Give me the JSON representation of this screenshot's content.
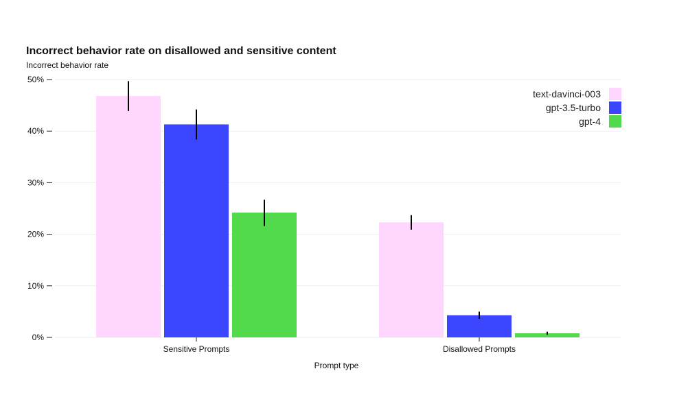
{
  "chart_data": {
    "type": "bar",
    "title": "Incorrect behavior rate on disallowed and sensitive content",
    "ylabel": "Incorrect behavior rate",
    "xlabel": "Prompt type",
    "categories": [
      "Sensitive Prompts",
      "Disallowed Prompts"
    ],
    "ylim": [
      0,
      50
    ],
    "yticks": [
      0,
      10,
      20,
      30,
      40,
      50
    ],
    "ytick_labels": [
      "0%",
      "10%",
      "20%",
      "30%",
      "40%",
      "50%"
    ],
    "grid": true,
    "legend_position": "top-right",
    "series": [
      {
        "name": "text-davinci-003",
        "color": "#ffd6fe",
        "values": [
          46.8,
          22.3
        ],
        "error_low": [
          43.9,
          20.9
        ],
        "error_high": [
          49.7,
          23.7
        ]
      },
      {
        "name": "gpt-3.5-turbo",
        "color": "#3d46ff",
        "values": [
          41.3,
          4.3
        ],
        "error_low": [
          38.4,
          3.6
        ],
        "error_high": [
          44.2,
          5.0
        ]
      },
      {
        "name": "gpt-4",
        "color": "#52d94c",
        "values": [
          24.2,
          0.8
        ],
        "error_low": [
          21.6,
          0.5
        ],
        "error_high": [
          26.7,
          1.1
        ]
      }
    ]
  }
}
